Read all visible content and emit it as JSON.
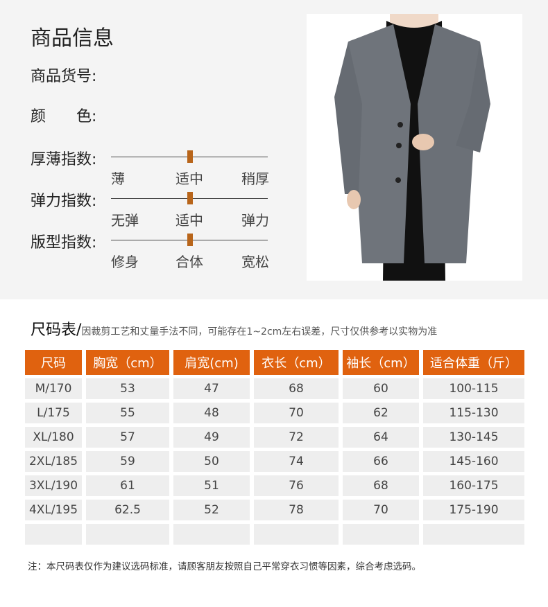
{
  "info": {
    "title": "商品信息",
    "item_no": "商品货号:",
    "color": "颜　　色:"
  },
  "indices": [
    {
      "label": "厚薄指数:",
      "left": "薄",
      "mid": "适中",
      "right": "稍厚",
      "level": "适中"
    },
    {
      "label": "弹力指数:",
      "left": "无弹",
      "mid": "适中",
      "right": "弹力",
      "level": "适中"
    },
    {
      "label": "版型指数:",
      "left": "修身",
      "mid": "合体",
      "right": "宽松",
      "level": "合体"
    }
  ],
  "colors": {
    "accent": "#e0620f",
    "thumb": "#b8651a",
    "coat": "#6f747b"
  },
  "size_chart": {
    "title": "尺码表/",
    "subtitle": "因裁剪工艺和丈量手法不同，可能存在1~2cm左右误差，尺寸仅供参考以实物为准",
    "headers": [
      "尺码",
      "胸宽（cm）",
      "肩宽(cm)",
      "衣长（cm）",
      "袖长（cm）",
      "适合体重（斤）"
    ],
    "rows": [
      [
        "M/170",
        "53",
        "47",
        "68",
        "60",
        "100-115"
      ],
      [
        "L/175",
        "55",
        "48",
        "70",
        "62",
        "115-130"
      ],
      [
        "XL/180",
        "57",
        "49",
        "72",
        "64",
        "130-145"
      ],
      [
        "2XL/185",
        "59",
        "50",
        "74",
        "66",
        "145-160"
      ],
      [
        "3XL/190",
        "61",
        "51",
        "76",
        "68",
        "160-175"
      ],
      [
        "4XL/195",
        "62.5",
        "52",
        "78",
        "70",
        "175-190"
      ],
      [
        "",
        "",
        "",
        "",
        "",
        ""
      ]
    ]
  },
  "note": "注：本尺码表仅作为建议选码标准，请顾客朋友按照自己平常穿衣习惯等因素，综合考虑选码。"
}
